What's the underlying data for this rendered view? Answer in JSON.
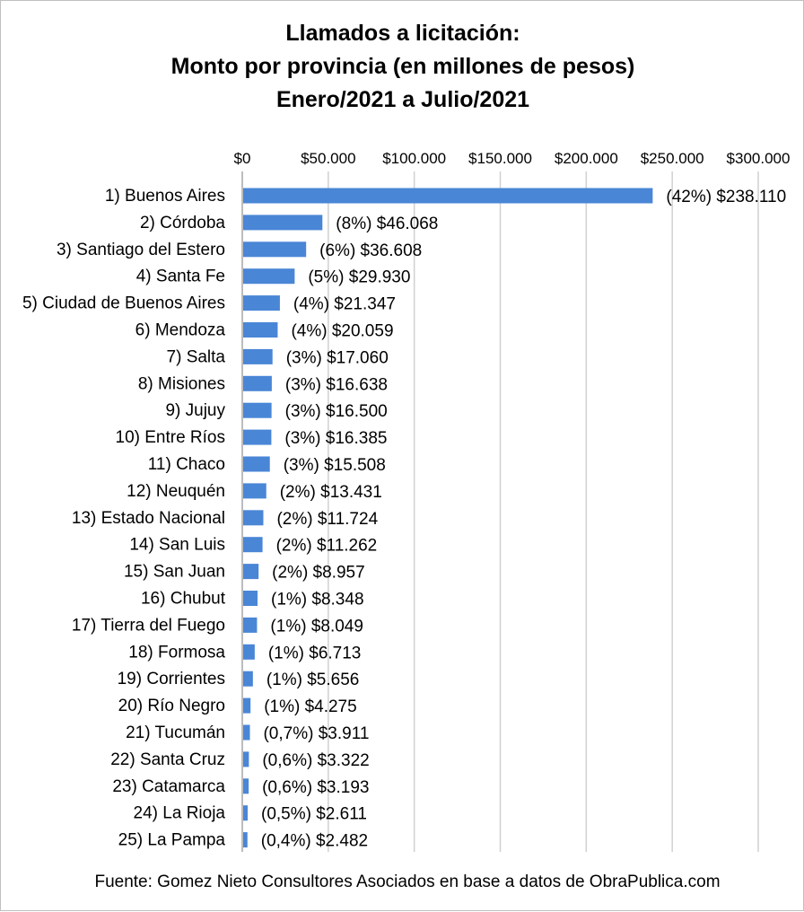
{
  "chart_data": {
    "type": "bar",
    "orientation": "horizontal",
    "title_lines": [
      "Llamados a licitación:",
      "Monto por provincia (en millones de pesos)",
      "Enero/2021 a Julio/2021"
    ],
    "categories": [
      "1) Buenos Aires",
      "2) Córdoba",
      "3) Santiago del Estero",
      "4) Santa Fe",
      "5) Ciudad de Buenos Aires",
      "6) Mendoza",
      "7) Salta",
      "8) Misiones",
      "9) Jujuy",
      "10) Entre Ríos",
      "11) Chaco",
      "12) Neuquén",
      "13) Estado Nacional",
      "14) San Luis",
      "15) San Juan",
      "16) Chubut",
      "17) Tierra del Fuego",
      "18) Formosa",
      "19) Corrientes",
      "20) Río Negro",
      "21) Tucumán",
      "22) Santa Cruz",
      "23) Catamarca",
      "24) La Rioja",
      "25) La Pampa"
    ],
    "values": [
      238110,
      46068,
      36608,
      29930,
      21347,
      20059,
      17060,
      16638,
      16500,
      16385,
      15508,
      13431,
      11724,
      11262,
      8957,
      8348,
      8049,
      6713,
      5656,
      4275,
      3911,
      3322,
      3193,
      2611,
      2482
    ],
    "data_labels": [
      "(42%) $238.110",
      "(8%) $46.068",
      "(6%) $36.608",
      "(5%) $29.930",
      "(4%) $21.347",
      "(4%) $20.059",
      "(3%) $17.060",
      "(3%) $16.638",
      "(3%) $16.500",
      "(3%) $16.385",
      "(3%) $15.508",
      "(2%) $13.431",
      "(2%) $11.724",
      "(2%) $11.262",
      "(2%) $8.957",
      "(1%) $8.348",
      "(1%) $8.049",
      "(1%) $6.713",
      "(1%) $5.656",
      "(1%) $4.275",
      "(0,7%) $3.911",
      "(0,6%) $3.322",
      "(0,6%) $3.193",
      "(0,5%) $2.611",
      "(0,4%) $2.482"
    ],
    "xlim": [
      0,
      300000
    ],
    "xticks": [
      0,
      50000,
      100000,
      150000,
      200000,
      250000,
      300000
    ],
    "xtick_labels": [
      "$0",
      "$50.000",
      "$100.000",
      "$150.000",
      "$200.000",
      "$250.000",
      "$300.000"
    ],
    "xaxis_position": "top",
    "grid": "vertical",
    "bar_color": "#4a86d6",
    "grid_color": "#d0d0d0",
    "legend": "none",
    "source": "Fuente: Gomez Nieto Consultores Asociados en base a datos de ObraPublica.com"
  }
}
